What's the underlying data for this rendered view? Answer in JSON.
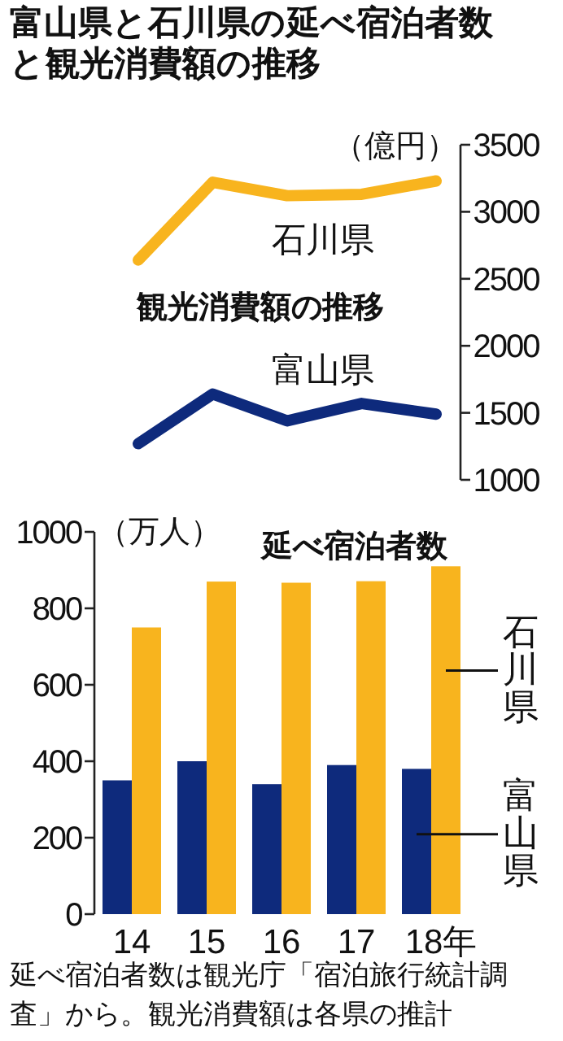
{
  "chart_data": [
    {
      "type": "line",
      "title": "富山県と石川県の延べ宿泊者数と観光消費額の推移",
      "subtitle": "観光消費額の推移",
      "ylabel": "（億円）",
      "categories": [
        null,
        null,
        null,
        null,
        null
      ],
      "series": [
        {
          "name": "富山県",
          "color": "#0e2a7c",
          "values": [
            1270,
            1640,
            1440,
            1570,
            1490
          ]
        },
        {
          "name": "石川県",
          "color": "#f8b41e",
          "values": [
            2640,
            3220,
            3120,
            3130,
            3230
          ]
        }
      ],
      "ylim": [
        1000,
        3500
      ],
      "yticks": [
        1000,
        1500,
        2000,
        2500,
        3000,
        3500
      ],
      "tick_labels": "y",
      "legend": false,
      "grid": false,
      "line_style": "solid",
      "marker": "none"
    },
    {
      "type": "bar",
      "title": "延べ宿泊者数",
      "ylabel": "（万人）",
      "categories": [
        "14",
        "15",
        "16",
        "17",
        "18年"
      ],
      "series": [
        {
          "name": "富山県",
          "color": "#0e2a7c",
          "values": [
            350,
            400,
            340,
            390,
            380
          ]
        },
        {
          "name": "石川県",
          "color": "#f8b41e",
          "values": [
            750,
            870,
            867,
            871,
            910
          ]
        }
      ],
      "ylim": [
        0,
        1000
      ],
      "yticks": [
        0,
        200,
        400,
        600,
        800,
        1000
      ],
      "legend": false,
      "grid": false,
      "annotations": [
        "延べ宿泊者数は観光庁「宿泊旅行統計調査」から。観光消費額は各県の推計"
      ]
    }
  ]
}
